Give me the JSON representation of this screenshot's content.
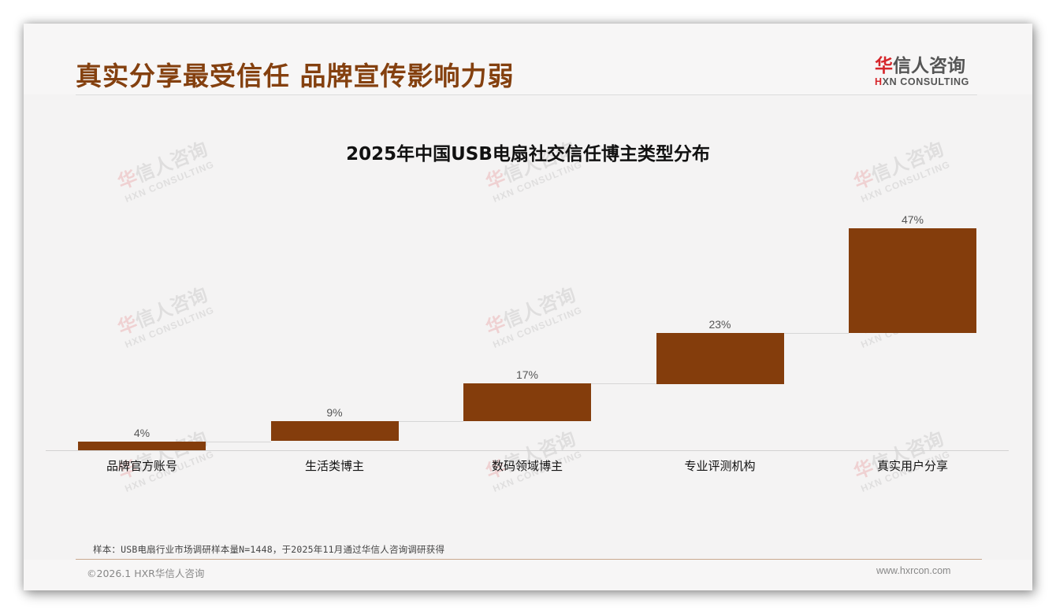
{
  "header": {
    "title": "真实分享最受信任 品牌宣传影响力弱"
  },
  "logo": {
    "cn_accent": "华",
    "cn_rest": "信人咨询",
    "en_accent": "H",
    "en_rest": "XN CONSULTING",
    "accent_color": "#d6262b"
  },
  "watermark": {
    "cn_accent": "华",
    "cn_rest": "信人咨询",
    "en": "HXN CONSULTING"
  },
  "chart_data": {
    "type": "waterfall",
    "title": "2025年中国USB电扇社交信任博主类型分布",
    "categories": [
      "品牌官方账号",
      "生活类博主",
      "数码领域博主",
      "专业评测机构",
      "真实用户分享"
    ],
    "values": [
      4,
      9,
      17,
      23,
      47
    ],
    "value_labels": [
      "4%",
      "9%",
      "17%",
      "23%",
      "47%"
    ],
    "cumulative_start": [
      0,
      4,
      13,
      30,
      53
    ],
    "cumulative_end": [
      4,
      13,
      30,
      53,
      100
    ],
    "unit": "%",
    "xlabel": "",
    "ylabel": "",
    "ylim": [
      0,
      100
    ],
    "grid": false,
    "legend": "none",
    "bar_color": "#843d0c"
  },
  "footer": {
    "source_note": "样本：USB电扇行业市场调研样本量N=1448，于2025年11月通过华信人咨询调研获得",
    "copyright": "©2026.1 HXR华信人咨询",
    "website": "www.hxrcon.com"
  },
  "colors": {
    "title": "#84400f",
    "bar": "#843d0c",
    "background": "#f4f3f3"
  }
}
